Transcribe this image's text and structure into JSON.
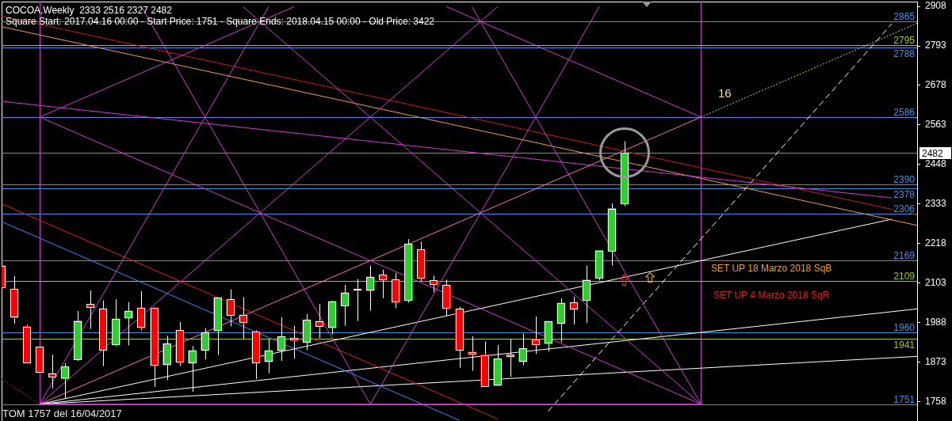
{
  "chart_data": {
    "type": "candlestick",
    "title": "COCOA,Weekly  2333 2516 2327 2482",
    "subtitle": "Square Start: 2017.04.16 00:00 - Start Price: 1751 - Square Ends: 2018.04.15 00:00 - Old Price: 3422",
    "categories": [
      null,
      null,
      null,
      null,
      null,
      null,
      null,
      null,
      null,
      null,
      null,
      null,
      null,
      null,
      null,
      null,
      null,
      null,
      null,
      null,
      null,
      null,
      null,
      null,
      null,
      null,
      null,
      null,
      null,
      null,
      null,
      null,
      null,
      null,
      null,
      null,
      null,
      null,
      null,
      null,
      null,
      null,
      null,
      null,
      null,
      null,
      null,
      null,
      null,
      null,
      null,
      null,
      null,
      null,
      null,
      null,
      null,
      null,
      null,
      null,
      null,
      null,
      null,
      null,
      null,
      null,
      null,
      null,
      null,
      null,
      null,
      null,
      null
    ],
    "ohlc": [
      [
        2154,
        2165,
        2050,
        2089
      ],
      [
        2086,
        2123,
        1985,
        2002
      ],
      [
        1977,
        1982,
        1870,
        1870
      ],
      [
        1918,
        1918,
        1842,
        1842
      ],
      [
        1841,
        1895,
        1797,
        1829
      ],
      [
        1825,
        1870,
        1766,
        1860
      ],
      [
        1880,
        2022,
        1877,
        1993
      ],
      [
        2042,
        2082,
        1970,
        2031
      ],
      [
        2029,
        2052,
        1862,
        1908
      ],
      [
        1923,
        2056,
        1920,
        1999
      ],
      [
        2001,
        2048,
        1922,
        2022
      ],
      [
        2031,
        2080,
        1966,
        1973
      ],
      [
        2031,
        2031,
        1801,
        1863
      ],
      [
        1865,
        1950,
        1821,
        1927
      ],
      [
        1966,
        1990,
        1862,
        1872
      ],
      [
        1870,
        1920,
        1787,
        1907
      ],
      [
        1907,
        1972,
        1881,
        1960
      ],
      [
        1964,
        2061,
        1894,
        2061
      ],
      [
        2056,
        2085,
        1977,
        2008
      ],
      [
        2011,
        2062,
        1939,
        1987
      ],
      [
        1962,
        1966,
        1824,
        1870
      ],
      [
        1874,
        1941,
        1841,
        1907
      ],
      [
        1906,
        2004,
        1877,
        1948
      ],
      [
        1943,
        1979,
        1883,
        1936
      ],
      [
        1930,
        2013,
        1908,
        1996
      ],
      [
        1993,
        2042,
        1943,
        1976
      ],
      [
        1973,
        2052,
        1954,
        2050
      ],
      [
        2037,
        2098,
        1979,
        2075
      ],
      [
        2086,
        2115,
        1993,
        2081
      ],
      [
        2081,
        2154,
        2023,
        2121
      ],
      [
        2127,
        2142,
        2059,
        2112
      ],
      [
        2113,
        2133,
        2030,
        2047
      ],
      [
        2052,
        2231,
        2046,
        2217
      ],
      [
        2201,
        2224,
        2108,
        2116
      ],
      [
        2111,
        2125,
        2077,
        2098
      ],
      [
        2098,
        2113,
        2008,
        2029
      ],
      [
        2029,
        2035,
        1857,
        1907
      ],
      [
        1903,
        1949,
        1848,
        1895
      ],
      [
        1894,
        1933,
        1801,
        1803
      ],
      [
        1805,
        1923,
        1804,
        1883
      ],
      [
        1895,
        1940,
        1830,
        1888
      ],
      [
        1874,
        1956,
        1864,
        1913
      ],
      [
        1940,
        2006,
        1897,
        1923
      ],
      [
        1927,
        1992,
        1904,
        1992
      ],
      [
        1985,
        2059,
        1931,
        2045
      ],
      [
        2047,
        2064,
        1983,
        2026
      ],
      [
        2052,
        2154,
        1987,
        2112
      ],
      [
        2117,
        2198,
        2111,
        2198
      ],
      [
        2196,
        2335,
        2154,
        2320
      ],
      [
        2333,
        2516,
        2327,
        2482
      ],
      null,
      null,
      null,
      null,
      null,
      null,
      null,
      null,
      null,
      null,
      null,
      null,
      null,
      null,
      null,
      null,
      null,
      null,
      null,
      null,
      null,
      null,
      null
    ],
    "color": "#ffffff",
    "colors": [
      "#ff0000",
      "#ff0000",
      "#ff0000",
      "#ff0000",
      "#ff0000",
      "#32cd32",
      "#32cd32",
      "#ff0000",
      "#ff0000",
      "#32cd32",
      "#32cd32",
      "#ff0000",
      "#ff0000",
      "#32cd32",
      "#ff0000",
      "#32cd32",
      "#32cd32",
      "#32cd32",
      "#ff0000",
      "#ff0000",
      "#ff0000",
      "#32cd32",
      "#32cd32",
      "#ff0000",
      "#32cd32",
      "#ff0000",
      "#32cd32",
      "#32cd32",
      "#ff0000",
      "#32cd32",
      "#ff0000",
      "#ff0000",
      "#32cd32",
      "#ff0000",
      "#ff0000",
      "#ff0000",
      "#ff0000",
      "#ff0000",
      "#ff0000",
      "#32cd32",
      "#ff0000",
      "#32cd32",
      "#ff0000",
      "#32cd32",
      "#32cd32",
      "#ff0000",
      "#32cd32",
      "#32cd32",
      "#32cd32",
      "#32cd32",
      null,
      null,
      null,
      null,
      null,
      null,
      null,
      null,
      null,
      null,
      null,
      null,
      null,
      null,
      null,
      null,
      null,
      null,
      null,
      null,
      null,
      null,
      null
    ],
    "series": [
      {
        "type": "line",
        "color": "#d63ad6",
        "values": [
          null,
          null,
          null,
          1751,
          null,
          null,
          null,
          null,
          null,
          null,
          null,
          null,
          null,
          null,
          null,
          null,
          null,
          null,
          null,
          null,
          null,
          null,
          null,
          null,
          null,
          null,
          null,
          null,
          null,
          null,
          null,
          null,
          null,
          null,
          null,
          null,
          null,
          null,
          null,
          null,
          null,
          null,
          null,
          null,
          null,
          null,
          null,
          null,
          null,
          null,
          null,
          null,
          null,
          null,
          null,
          1751,
          null,
          null,
          null,
          null,
          null,
          null,
          null,
          null,
          null,
          null,
          null,
          null,
          null,
          null,
          null,
          null,
          null
        ]
      },
      {
        "type": "line",
        "color": "#d63ad6",
        "values": [
          null,
          null,
          null,
          2586,
          null,
          null,
          null,
          null,
          null,
          null,
          null,
          null,
          null,
          null,
          null,
          null,
          null,
          null,
          null,
          null,
          null,
          null,
          null,
          null,
          null,
          null,
          null,
          null,
          null,
          null,
          null,
          null,
          null,
          null,
          null,
          null,
          null,
          null,
          null,
          null,
          null,
          null,
          null,
          null,
          null,
          null,
          null,
          null,
          null,
          null,
          null,
          null,
          null,
          null,
          null,
          1751,
          null,
          null,
          null,
          null,
          null,
          null,
          null,
          null,
          null,
          null,
          null,
          null,
          null,
          null,
          null,
          null,
          null
        ]
      },
      {
        "type": "line",
        "color": "#ff70c0",
        "values": [
          null,
          null,
          null,
          1751,
          null,
          null,
          null,
          null,
          null,
          null,
          null,
          null,
          null,
          null,
          null,
          null,
          null,
          null,
          null,
          null,
          null,
          null,
          null,
          null,
          null,
          null,
          null,
          null,
          null,
          null,
          null,
          null,
          null,
          null,
          null,
          null,
          null,
          null,
          null,
          null,
          null,
          null,
          null,
          null,
          null,
          null,
          null,
          null,
          null,
          null,
          null,
          null,
          null,
          null,
          null,
          2586,
          null,
          null,
          null,
          null,
          null,
          null,
          null,
          null,
          null,
          null,
          null,
          null,
          null,
          null,
          null,
          null,
          null
        ]
      },
      {
        "type": "line",
        "color": "#ffe14d",
        "line_style": "dotted",
        "values": [
          null,
          null,
          null,
          null,
          null,
          null,
          null,
          null,
          null,
          null,
          null,
          null,
          null,
          null,
          null,
          null,
          null,
          null,
          null,
          null,
          null,
          null,
          null,
          null,
          null,
          null,
          null,
          null,
          null,
          null,
          null,
          null,
          null,
          null,
          null,
          null,
          null,
          null,
          null,
          null,
          null,
          null,
          null,
          null,
          null,
          null,
          null,
          null,
          null,
          null,
          null,
          null,
          null,
          null,
          null,
          2586,
          null,
          null,
          null,
          null,
          null,
          null,
          null,
          null,
          null,
          null,
          null,
          null,
          null,
          null,
          null,
          null,
          2859
        ]
      },
      {
        "type": "line",
        "color": "#d63ad6",
        "values": [
          null,
          null,
          null,
          2586,
          null,
          null,
          null,
          null,
          null,
          null,
          null,
          null,
          null,
          null,
          null,
          null,
          null,
          null,
          null,
          null,
          null,
          null,
          null,
          2907,
          null,
          null,
          null,
          null,
          null,
          null,
          null,
          null,
          null,
          null,
          null,
          null,
          null,
          null,
          null,
          null,
          null,
          null,
          null,
          null,
          null,
          null,
          null,
          null,
          null,
          null,
          null,
          null,
          null,
          null,
          null,
          null,
          null,
          null,
          null,
          null,
          null,
          null,
          null,
          null,
          null,
          null,
          null,
          null,
          null,
          null,
          null,
          null,
          null
        ]
      },
      {
        "type": "line",
        "color": "#d63ad6",
        "values": [
          null,
          null,
          null,
          null,
          null,
          null,
          null,
          null,
          null,
          null,
          null,
          null,
          null,
          null,
          null,
          null,
          null,
          null,
          null,
          null,
          null,
          null,
          null,
          null,
          null,
          null,
          null,
          null,
          null,
          null,
          null,
          null,
          null,
          null,
          null,
          2907,
          null,
          null,
          null,
          null,
          null,
          null,
          null,
          null,
          null,
          null,
          null,
          null,
          null,
          null,
          null,
          null,
          null,
          null,
          null,
          2586,
          null,
          null,
          null,
          null,
          null,
          null,
          null,
          null,
          null,
          null,
          null,
          null,
          null,
          null,
          null,
          null,
          null
        ]
      },
      {
        "type": "line",
        "color": "#d63ad6",
        "values": [
          null,
          null,
          null,
          1751,
          null,
          null,
          null,
          null,
          null,
          null,
          null,
          null,
          null,
          null,
          null,
          null,
          null,
          null,
          null,
          null,
          null,
          null,
          null,
          null,
          null,
          null,
          null,
          null,
          null,
          null,
          null,
          null,
          null,
          null,
          null,
          null,
          null,
          null,
          null,
          2907,
          null,
          null,
          null,
          null,
          null,
          null,
          null,
          null,
          null,
          null,
          null,
          null,
          null,
          null,
          null,
          null,
          null,
          null,
          null,
          null,
          null,
          null,
          null,
          null,
          null,
          null,
          null,
          null,
          null,
          null,
          null,
          null,
          null
        ]
      },
      {
        "type": "line",
        "color": "#d63ad6",
        "values": [
          null,
          null,
          null,
          1751,
          null,
          null,
          null,
          null,
          null,
          null,
          null,
          null,
          null,
          null,
          null,
          null,
          null,
          null,
          null,
          null,
          null,
          2907,
          null,
          null,
          null,
          null,
          null,
          null,
          null,
          null,
          null,
          null,
          null,
          null,
          null,
          null,
          null,
          null,
          null,
          null,
          null,
          null,
          null,
          null,
          null,
          null,
          null,
          null,
          null,
          null,
          null,
          null,
          null,
          null,
          null,
          null,
          null,
          null,
          null,
          null,
          null,
          null,
          null,
          null,
          null,
          null,
          null,
          null,
          null,
          null,
          null,
          null,
          null
        ]
      },
      {
        "type": "line",
        "color": "#d63ad6",
        "values": [
          null,
          null,
          null,
          null,
          null,
          null,
          null,
          null,
          null,
          null,
          null,
          null,
          null,
          null,
          null,
          null,
          null,
          null,
          null,
          2907,
          null,
          null,
          null,
          null,
          null,
          null,
          null,
          null,
          null,
          null,
          null,
          null,
          null,
          null,
          null,
          null,
          null,
          null,
          null,
          null,
          null,
          null,
          null,
          null,
          null,
          null,
          null,
          null,
          null,
          null,
          null,
          null,
          null,
          null,
          null,
          1751,
          null,
          null,
          null,
          null,
          null,
          null,
          null,
          null,
          null,
          null,
          null,
          null,
          null,
          null,
          null,
          null,
          null
        ]
      },
      {
        "type": "line",
        "color": "#d63ad6",
        "values": [
          null,
          null,
          null,
          null,
          null,
          null,
          null,
          null,
          null,
          null,
          null,
          null,
          null,
          null,
          null,
          null,
          null,
          null,
          null,
          null,
          null,
          null,
          null,
          null,
          null,
          null,
          null,
          null,
          null,
          null,
          null,
          null,
          null,
          null,
          null,
          null,
          null,
          2907,
          null,
          null,
          null,
          null,
          null,
          null,
          null,
          null,
          null,
          null,
          null,
          null,
          null,
          null,
          null,
          null,
          null,
          1751,
          null,
          null,
          null,
          null,
          null,
          null,
          null,
          null,
          null,
          null,
          null,
          null,
          null,
          null,
          null,
          null,
          null
        ]
      },
      {
        "type": "line",
        "color": "#d63ad6",
        "values": [
          null,
          null,
          null,
          null,
          null,
          null,
          null,
          null,
          null,
          null,
          null,
          null,
          null,
          null,
          null,
          null,
          null,
          null,
          null,
          null,
          null,
          null,
          null,
          null,
          null,
          null,
          null,
          null,
          null,
          1751,
          null,
          null,
          null,
          null,
          null,
          null,
          null,
          null,
          null,
          null,
          null,
          null,
          null,
          null,
          null,
          null,
          null,
          2907,
          null,
          null,
          null,
          null,
          null,
          null,
          null,
          null,
          null,
          null,
          null,
          null,
          null,
          null,
          null,
          null,
          null,
          null,
          null,
          null,
          null,
          null,
          null,
          null,
          null
        ]
      },
      {
        "type": "line",
        "color": "#d63ad6",
        "values": [
          null,
          null,
          null,
          null,
          null,
          null,
          null,
          null,
          null,
          null,
          null,
          2907,
          null,
          null,
          null,
          null,
          null,
          null,
          null,
          null,
          null,
          null,
          null,
          null,
          null,
          null,
          null,
          null,
          null,
          1751,
          null,
          null,
          null,
          null,
          null,
          null,
          null,
          null,
          null,
          null,
          null,
          null,
          null,
          null,
          null,
          null,
          null,
          null,
          null,
          null,
          null,
          null,
          null,
          null,
          null,
          null,
          null,
          null,
          null,
          null,
          null,
          null,
          null,
          null,
          null,
          null,
          null,
          null,
          null,
          null,
          null,
          null,
          null
        ]
      },
      {
        "type": "line",
        "color": "#d63ad6",
        "values": [
          2632,
          null,
          null,
          null,
          null,
          null,
          null,
          null,
          null,
          null,
          null,
          null,
          null,
          null,
          null,
          null,
          null,
          null,
          null,
          null,
          null,
          null,
          null,
          null,
          null,
          null,
          null,
          null,
          null,
          null,
          null,
          null,
          null,
          null,
          null,
          null,
          null,
          null,
          null,
          null,
          null,
          null,
          null,
          null,
          null,
          null,
          null,
          null,
          null,
          null,
          null,
          null,
          null,
          null,
          null,
          null,
          null,
          null,
          null,
          null,
          null,
          null,
          null,
          null,
          null,
          null,
          null,
          null,
          null,
          null,
          2351,
          null,
          null
        ]
      },
      {
        "type": "line",
        "color": "#cc1a1a",
        "values": [
          2880,
          null,
          null,
          null,
          null,
          null,
          null,
          null,
          null,
          null,
          null,
          null,
          null,
          null,
          null,
          null,
          null,
          null,
          null,
          null,
          null,
          null,
          null,
          null,
          null,
          null,
          null,
          null,
          null,
          null,
          null,
          null,
          null,
          null,
          null,
          null,
          null,
          null,
          null,
          null,
          null,
          null,
          null,
          null,
          null,
          null,
          null,
          null,
          null,
          null,
          null,
          null,
          null,
          null,
          null,
          null,
          null,
          null,
          null,
          null,
          null,
          null,
          null,
          null,
          null,
          null,
          null,
          null,
          null,
          null,
          null,
          null,
          2302
        ]
      },
      {
        "type": "line",
        "color": "#f0a040",
        "values": [
          2849,
          null,
          null,
          null,
          null,
          null,
          null,
          null,
          null,
          null,
          null,
          null,
          null,
          null,
          null,
          null,
          null,
          null,
          null,
          null,
          null,
          null,
          null,
          null,
          null,
          null,
          null,
          null,
          null,
          null,
          null,
          null,
          null,
          null,
          null,
          null,
          null,
          null,
          null,
          null,
          null,
          null,
          null,
          null,
          null,
          null,
          null,
          null,
          null,
          null,
          null,
          null,
          null,
          null,
          null,
          null,
          null,
          null,
          null,
          null,
          null,
          null,
          null,
          null,
          null,
          null,
          null,
          null,
          null,
          null,
          null,
          null,
          2271
        ]
      },
      {
        "type": "line",
        "color": "#e02020",
        "values": [
          2334,
          null,
          null,
          null,
          null,
          null,
          null,
          null,
          null,
          null,
          null,
          null,
          null,
          null,
          null,
          null,
          null,
          null,
          null,
          null,
          null,
          null,
          null,
          null,
          null,
          null,
          null,
          null,
          null,
          null,
          null,
          null,
          null,
          null,
          null,
          null,
          null,
          null,
          null,
          1708,
          null,
          null,
          null,
          null,
          null,
          null,
          null,
          null,
          null,
          null,
          null,
          null,
          null,
          null,
          null,
          null,
          null,
          null,
          null,
          null,
          null,
          null,
          null,
          null,
          null,
          null,
          null,
          null,
          null,
          null,
          null,
          null,
          null
        ]
      },
      {
        "type": "line",
        "color": "#3c8cff",
        "values": [
          2282,
          null,
          null,
          null,
          null,
          null,
          null,
          null,
          null,
          null,
          null,
          null,
          null,
          null,
          null,
          null,
          null,
          null,
          null,
          null,
          null,
          null,
          null,
          null,
          null,
          null,
          null,
          null,
          null,
          null,
          null,
          null,
          null,
          null,
          null,
          null,
          1704,
          null,
          null,
          null,
          null,
          null,
          null,
          null,
          null,
          null,
          null,
          null,
          null,
          null,
          null,
          null,
          null,
          null,
          null,
          null,
          null,
          null,
          null,
          null,
          null,
          null,
          null,
          null,
          null,
          null,
          null,
          null,
          null,
          null,
          null,
          null,
          null
        ]
      },
      {
        "type": "line",
        "color": "#e02020",
        "line_style": "dotted",
        "values": [
          1824,
          null,
          null,
          1751,
          null,
          null,
          null,
          null,
          null,
          null,
          null,
          null,
          null,
          null,
          null,
          null,
          null,
          null,
          null,
          null,
          null,
          null,
          null,
          null,
          null,
          null,
          null,
          null,
          null,
          null,
          null,
          null,
          null,
          null,
          null,
          null,
          null,
          null,
          null,
          null,
          null,
          null,
          null,
          null,
          null,
          null,
          null,
          null,
          null,
          null,
          null,
          null,
          null,
          null,
          null,
          null,
          null,
          null,
          null,
          null,
          null,
          null,
          null,
          null,
          null,
          null,
          null,
          null,
          null,
          null,
          null,
          null,
          null
        ]
      },
      {
        "type": "line",
        "color": "#ffffff",
        "values": [
          null,
          null,
          null,
          1751,
          null,
          null,
          null,
          null,
          null,
          null,
          null,
          null,
          null,
          null,
          null,
          null,
          null,
          null,
          null,
          null,
          null,
          null,
          null,
          null,
          null,
          null,
          null,
          null,
          null,
          null,
          null,
          null,
          null,
          null,
          null,
          null,
          null,
          null,
          null,
          null,
          null,
          null,
          null,
          null,
          null,
          null,
          null,
          null,
          null,
          null,
          null,
          null,
          null,
          null,
          null,
          null,
          null,
          null,
          null,
          null,
          null,
          null,
          null,
          null,
          null,
          null,
          null,
          null,
          null,
          null,
          2289,
          null,
          null
        ]
      },
      {
        "type": "line",
        "color": "#ffffff",
        "values": [
          null,
          null,
          null,
          1751,
          null,
          null,
          null,
          null,
          null,
          null,
          null,
          null,
          null,
          null,
          null,
          null,
          null,
          null,
          null,
          null,
          null,
          null,
          null,
          null,
          null,
          null,
          null,
          null,
          null,
          null,
          null,
          null,
          null,
          null,
          null,
          null,
          null,
          null,
          null,
          null,
          null,
          null,
          null,
          null,
          null,
          null,
          null,
          null,
          null,
          null,
          null,
          null,
          null,
          null,
          null,
          null,
          null,
          null,
          null,
          null,
          null,
          null,
          null,
          null,
          null,
          null,
          null,
          null,
          null,
          null,
          null,
          null,
          2028
        ]
      },
      {
        "type": "line",
        "color": "#ffffff",
        "values": [
          null,
          null,
          null,
          1751,
          null,
          null,
          null,
          null,
          null,
          null,
          null,
          null,
          null,
          null,
          null,
          null,
          null,
          null,
          null,
          null,
          null,
          null,
          null,
          null,
          null,
          null,
          null,
          null,
          null,
          null,
          null,
          null,
          null,
          null,
          null,
          null,
          null,
          null,
          null,
          null,
          null,
          null,
          null,
          null,
          null,
          null,
          null,
          null,
          null,
          null,
          null,
          null,
          null,
          null,
          null,
          null,
          null,
          null,
          null,
          null,
          null,
          null,
          null,
          null,
          null,
          null,
          null,
          null,
          null,
          null,
          null,
          null,
          1890
        ]
      },
      {
        "type": "line",
        "color": "#ffffff",
        "line_style": "dashed",
        "values": [
          null,
          null,
          null,
          null,
          null,
          null,
          null,
          null,
          null,
          null,
          null,
          null,
          null,
          null,
          null,
          null,
          null,
          null,
          null,
          null,
          null,
          null,
          null,
          null,
          null,
          null,
          null,
          null,
          null,
          null,
          null,
          null,
          null,
          null,
          null,
          null,
          null,
          null,
          null,
          null,
          null,
          null,
          null,
          1731,
          null,
          null,
          null,
          null,
          null,
          null,
          null,
          null,
          null,
          null,
          null,
          null,
          null,
          null,
          null,
          null,
          null,
          null,
          null,
          null,
          null,
          null,
          null,
          null,
          null,
          null,
          2857,
          null,
          null
        ]
      }
    ],
    "ylim": [
      1702,
      2922
    ],
    "yticks": [
      1758,
      1873,
      1988,
      2103,
      2218,
      2333,
      2448,
      2563,
      2678,
      2793,
      2908
    ],
    "tick_labels": "y",
    "ref_lines": [
      {
        "axis": "y",
        "value": 2865,
        "label": "2865",
        "color": "#4a90e2"
      },
      {
        "axis": "y",
        "value": 2795,
        "label": "2795",
        "color": "#9acd32"
      },
      {
        "axis": "y",
        "value": 2788,
        "label": "2788",
        "color": "#4a90e2"
      },
      {
        "axis": "y",
        "value": 2586,
        "label": "2586",
        "color": "#4a90e2"
      },
      {
        "axis": "y",
        "value": 2482,
        "label": "2482",
        "color": "#8c8c8c"
      },
      {
        "axis": "y",
        "value": 2390,
        "label": "2390",
        "color": "#4a90e2"
      },
      {
        "axis": "y",
        "value": 2378,
        "label": "2378",
        "color": "#4a90e2"
      },
      {
        "axis": "y",
        "value": 2306,
        "label": "2306",
        "color": "#4a90e2"
      },
      {
        "axis": "y",
        "value": 2169,
        "label": "2169",
        "color": "#4a90e2"
      },
      {
        "axis": "y",
        "value": 2109,
        "label": "2109",
        "color": "#9acd32"
      },
      {
        "axis": "y",
        "value": 1960,
        "label": "1960",
        "color": "#4a90e2"
      },
      {
        "axis": "y",
        "value": 1941,
        "label": "1941",
        "color": "#9acd32"
      },
      {
        "axis": "y",
        "value": 1751,
        "label": "1751",
        "color": "#4a90e2"
      }
    ],
    "annotations": [
      "16",
      "SET UP 18 Marzo 2018 SqB",
      "SET UP 4 Marzo 2018 SqR",
      "TOM 1757 del 16/04/2017"
    ]
  }
}
